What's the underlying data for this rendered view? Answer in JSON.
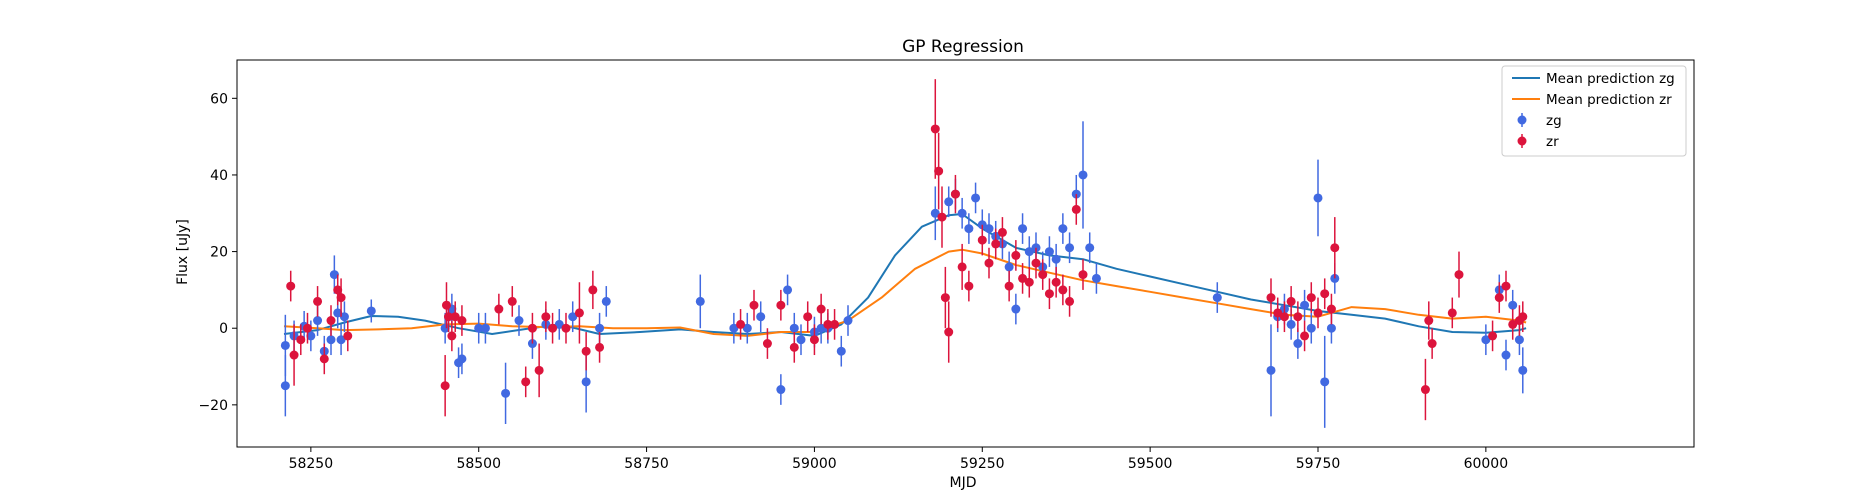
{
  "chart_data": {
    "type": "scatter",
    "title": "GP Regression",
    "xlabel": "MJD",
    "ylabel": "Flux [uJy]",
    "xlim": [
      58140,
      60310
    ],
    "ylim": [
      -31,
      70
    ],
    "xticks": [
      58250,
      58500,
      58750,
      59000,
      59250,
      59500,
      59750,
      60000
    ],
    "yticks": [
      -20,
      0,
      20,
      40,
      60
    ],
    "legend_position": "top-right",
    "grid": false,
    "series": [
      {
        "name": "Mean prediction zg",
        "kind": "line",
        "color": "#1f77b4",
        "x": [
          58210,
          58260,
          58300,
          58340,
          58380,
          58420,
          58470,
          58520,
          58570,
          58620,
          58680,
          58740,
          58800,
          58850,
          58900,
          58950,
          59000,
          59040,
          59080,
          59120,
          59160,
          59200,
          59220,
          59250,
          59300,
          59350,
          59400,
          59450,
          59500,
          59550,
          59600,
          59650,
          59700,
          59750,
          59800,
          59850,
          59900,
          59950,
          60000,
          60050,
          60060
        ],
        "y": [
          -1.5,
          -0.5,
          1.5,
          3.2,
          3.0,
          2.0,
          0.0,
          -1.5,
          -0.2,
          1.0,
          -1.5,
          -1.0,
          -0.3,
          -1.0,
          -1.5,
          -1.0,
          -2.0,
          1.0,
          8.0,
          19.0,
          26.5,
          29.5,
          29.8,
          26.0,
          21.0,
          19.0,
          18.0,
          15.5,
          13.5,
          11.5,
          9.5,
          7.5,
          6.0,
          4.5,
          3.5,
          2.5,
          0.5,
          -1.0,
          -1.2,
          -0.5,
          0.0
        ]
      },
      {
        "name": "Mean prediction zr",
        "kind": "line",
        "color": "#ff7f0e",
        "x": [
          58210,
          58260,
          58300,
          58350,
          58400,
          58450,
          58500,
          58550,
          58600,
          58650,
          58700,
          58750,
          58800,
          58850,
          58900,
          58950,
          59000,
          59050,
          59100,
          59150,
          59200,
          59220,
          59250,
          59300,
          59350,
          59400,
          59450,
          59500,
          59550,
          59600,
          59650,
          59700,
          59750,
          59800,
          59850,
          59900,
          59950,
          60000,
          60050,
          60060
        ],
        "y": [
          0.5,
          0.0,
          -0.5,
          -0.3,
          0.0,
          1.0,
          1.2,
          0.5,
          0.3,
          0.5,
          0.0,
          0.0,
          0.2,
          -1.5,
          -2.0,
          -1.0,
          -1.0,
          2.0,
          8.0,
          15.5,
          20.0,
          20.5,
          19.5,
          16.5,
          14.5,
          12.5,
          11.0,
          9.5,
          8.0,
          6.5,
          5.0,
          3.5,
          3.0,
          5.5,
          5.0,
          3.5,
          2.5,
          3.0,
          2.0,
          1.5
        ]
      },
      {
        "name": "zg",
        "kind": "errorbar",
        "color": "#4169e1",
        "x": [
          58212,
          58212,
          58225,
          58240,
          58250,
          58260,
          58270,
          58280,
          58285,
          58290,
          58295,
          58300,
          58340,
          58450,
          58455,
          58460,
          58470,
          58475,
          58500,
          58510,
          58540,
          58560,
          58580,
          58600,
          58620,
          58640,
          58660,
          58680,
          58690,
          58830,
          58880,
          58900,
          58920,
          58950,
          58960,
          58970,
          58980,
          59000,
          59010,
          59020,
          59040,
          59050,
          59180,
          59200,
          59210,
          59220,
          59230,
          59240,
          59250,
          59260,
          59270,
          59280,
          59290,
          59300,
          59310,
          59320,
          59330,
          59340,
          59350,
          59360,
          59370,
          59380,
          59390,
          59400,
          59410,
          59420,
          59600,
          59680,
          59690,
          59700,
          59710,
          59720,
          59730,
          59740,
          59750,
          59760,
          59770,
          59775,
          60000,
          60020,
          60030,
          60040,
          60050,
          60055
        ],
        "y": [
          -4.5,
          -15,
          -2,
          0.5,
          -2,
          2,
          -6,
          -3,
          14,
          4,
          -3,
          3,
          4.5,
          0,
          3,
          5,
          -9,
          -8,
          0,
          0,
          -17,
          2,
          -4,
          1,
          1,
          3,
          -14,
          0,
          7,
          7,
          0,
          0,
          3,
          -16,
          10,
          0,
          -3,
          -1,
          0,
          0,
          -6,
          2,
          30,
          33,
          35,
          30,
          26,
          34,
          27,
          26,
          24,
          22,
          16,
          5,
          26,
          20,
          21,
          16,
          20,
          18,
          26,
          21,
          35,
          40,
          21,
          13,
          8,
          -11,
          3,
          5,
          1,
          -4,
          6,
          0,
          34,
          -14,
          0,
          13,
          -3,
          10,
          -7,
          6,
          -3,
          -11
        ],
        "yerr": [
          8,
          8,
          4,
          4,
          4,
          4,
          4,
          4,
          5,
          4,
          4,
          4,
          3,
          4,
          4,
          4,
          4,
          4,
          4,
          4,
          8,
          4,
          4,
          4,
          4,
          4,
          8,
          4,
          4,
          7,
          4,
          4,
          4,
          4,
          4,
          4,
          4,
          4,
          4,
          4,
          4,
          4,
          7,
          4,
          4,
          4,
          4,
          4,
          4,
          4,
          4,
          4,
          4,
          4,
          4,
          4,
          4,
          4,
          4,
          4,
          4,
          4,
          5,
          14,
          4,
          4,
          4,
          12,
          4,
          4,
          4,
          4,
          4,
          4,
          10,
          12,
          4,
          4,
          4,
          4,
          4,
          4,
          4,
          6
        ]
      },
      {
        "name": "zr",
        "kind": "errorbar",
        "color": "#dc143c",
        "x": [
          58220,
          58225,
          58235,
          58245,
          58260,
          58270,
          58280,
          58290,
          58295,
          58305,
          58450,
          58452,
          58455,
          58460,
          58465,
          58475,
          58530,
          58550,
          58570,
          58580,
          58590,
          58600,
          58610,
          58630,
          58650,
          58660,
          58670,
          58680,
          58890,
          58910,
          58930,
          58950,
          58970,
          58990,
          59000,
          59010,
          59020,
          59030,
          59180,
          59185,
          59190,
          59195,
          59200,
          59210,
          59220,
          59230,
          59250,
          59260,
          59270,
          59280,
          59290,
          59300,
          59310,
          59320,
          59330,
          59340,
          59350,
          59360,
          59370,
          59380,
          59390,
          59400,
          59680,
          59690,
          59700,
          59710,
          59720,
          59730,
          59740,
          59750,
          59760,
          59770,
          59775,
          59910,
          59915,
          59920,
          59950,
          59960,
          60010,
          60020,
          60030,
          60040,
          60050,
          60055
        ],
        "y": [
          11,
          -7,
          -3,
          0,
          7,
          -8,
          2,
          10,
          8,
          -2,
          -15,
          6,
          3,
          -2,
          3,
          2,
          5,
          7,
          -14,
          0,
          -11,
          3,
          0,
          0,
          4,
          -6,
          10,
          -5,
          1,
          6,
          -4,
          6,
          -5,
          3,
          -3,
          5,
          1,
          1,
          52,
          41,
          29,
          8,
          -1,
          35,
          16,
          11,
          23,
          17,
          22,
          25,
          11,
          19,
          13,
          12,
          17,
          14,
          9,
          12,
          10,
          7,
          31,
          14,
          8,
          4,
          3,
          7,
          3,
          -2,
          8,
          4,
          9,
          5,
          21,
          -16,
          2,
          -4,
          4,
          14,
          -2,
          8,
          11,
          1,
          2,
          3
        ],
        "yerr": [
          4,
          8,
          4,
          4,
          4,
          4,
          4,
          4,
          5,
          4,
          8,
          6,
          4,
          4,
          4,
          4,
          4,
          4,
          4,
          4,
          7,
          4,
          4,
          4,
          8,
          5,
          5,
          4,
          4,
          4,
          4,
          4,
          4,
          4,
          4,
          4,
          4,
          4,
          13,
          10,
          8,
          8,
          8,
          5,
          6,
          4,
          4,
          4,
          4,
          4,
          4,
          4,
          4,
          4,
          4,
          4,
          4,
          4,
          4,
          4,
          4,
          4,
          5,
          4,
          4,
          4,
          4,
          4,
          4,
          4,
          4,
          4,
          8,
          8,
          5,
          4,
          4,
          6,
          4,
          4,
          4,
          4,
          4,
          4
        ]
      }
    ]
  }
}
